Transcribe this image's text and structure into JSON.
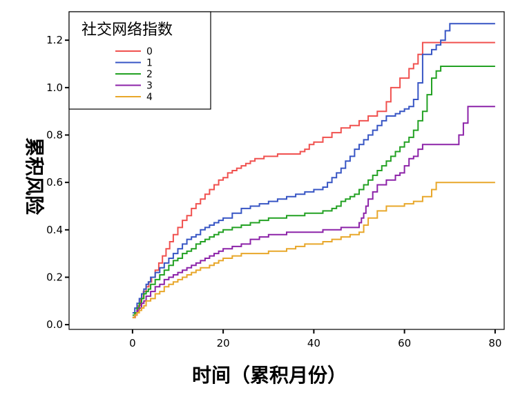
{
  "chart_data": {
    "type": "line",
    "step": true,
    "xlabel": "时间（累积月份）",
    "ylabel": "累积风险",
    "xlim": [
      -14,
      82
    ],
    "ylim": [
      -0.02,
      1.32
    ],
    "x_ticks": [
      0,
      20,
      40,
      60,
      80
    ],
    "y_ticks": [
      0.0,
      0.2,
      0.4,
      0.6,
      0.8,
      1.0,
      1.2
    ],
    "y_tick_labels": [
      "0.0",
      "0.2",
      "0.4",
      "0.6",
      "0.8",
      "1.0",
      "1.2"
    ],
    "legend": {
      "title": "社交网络指数",
      "placement": "top-left"
    },
    "series": [
      {
        "name": "0",
        "color": "#f0504e",
        "x": [
          0,
          0.6,
          1.2,
          1.8,
          2.4,
          3,
          3.6,
          4.2,
          5,
          5.8,
          6.6,
          7.4,
          8.2,
          9,
          10,
          11,
          12,
          13,
          14,
          15,
          16,
          17,
          18,
          19,
          20,
          21,
          22,
          23,
          24,
          25,
          26,
          27,
          28,
          29,
          30,
          32,
          34,
          36,
          37,
          38,
          39,
          40,
          42,
          44,
          46,
          48,
          50,
          52,
          54,
          56,
          57,
          59,
          61,
          62,
          63,
          64,
          80
        ],
        "y": [
          0.03,
          0.05,
          0.08,
          0.11,
          0.14,
          0.16,
          0.18,
          0.2,
          0.23,
          0.26,
          0.29,
          0.32,
          0.35,
          0.38,
          0.41,
          0.44,
          0.46,
          0.49,
          0.51,
          0.53,
          0.55,
          0.57,
          0.59,
          0.61,
          0.62,
          0.64,
          0.65,
          0.66,
          0.67,
          0.68,
          0.69,
          0.7,
          0.7,
          0.71,
          0.71,
          0.72,
          0.72,
          0.72,
          0.73,
          0.74,
          0.76,
          0.77,
          0.79,
          0.81,
          0.83,
          0.84,
          0.86,
          0.88,
          0.9,
          0.94,
          1.0,
          1.04,
          1.08,
          1.1,
          1.14,
          1.19,
          1.19
        ]
      },
      {
        "name": "1",
        "color": "#3755c4",
        "x": [
          0,
          0.5,
          1,
          1.5,
          2,
          2.5,
          3,
          3.5,
          4,
          5,
          6,
          7,
          8,
          9,
          10,
          11,
          12,
          13,
          14,
          15,
          16,
          17,
          18,
          19,
          20,
          22,
          24,
          26,
          28,
          30,
          32,
          34,
          36,
          38,
          40,
          42,
          43,
          44,
          45,
          46,
          47,
          48,
          49,
          50,
          51,
          52,
          53,
          54,
          55,
          56,
          57,
          58,
          59,
          60,
          61,
          62,
          63,
          64,
          66,
          67,
          68,
          69,
          70,
          80
        ],
        "y": [
          0.05,
          0.07,
          0.09,
          0.11,
          0.13,
          0.15,
          0.17,
          0.18,
          0.2,
          0.22,
          0.24,
          0.26,
          0.28,
          0.3,
          0.32,
          0.34,
          0.36,
          0.37,
          0.38,
          0.4,
          0.41,
          0.42,
          0.43,
          0.44,
          0.45,
          0.47,
          0.49,
          0.5,
          0.51,
          0.52,
          0.53,
          0.54,
          0.55,
          0.56,
          0.57,
          0.58,
          0.6,
          0.62,
          0.64,
          0.66,
          0.69,
          0.71,
          0.74,
          0.76,
          0.78,
          0.8,
          0.82,
          0.84,
          0.86,
          0.88,
          0.88,
          0.89,
          0.9,
          0.91,
          0.92,
          0.95,
          1.02,
          1.14,
          1.16,
          1.18,
          1.2,
          1.24,
          1.27,
          1.27
        ]
      },
      {
        "name": "2",
        "color": "#22a122",
        "x": [
          0,
          0.5,
          1,
          1.5,
          2,
          2.5,
          3,
          3.5,
          4,
          5,
          6,
          7,
          8,
          9,
          10,
          11,
          12,
          13,
          14,
          15,
          16,
          17,
          18,
          19,
          20,
          22,
          24,
          26,
          28,
          30,
          32,
          34,
          36,
          38,
          40,
          42,
          44,
          45,
          46,
          47,
          48,
          49,
          50,
          51,
          52,
          53,
          54,
          55,
          56,
          57,
          58,
          59,
          60,
          61,
          62,
          63,
          64,
          65,
          66,
          67,
          68,
          80
        ],
        "y": [
          0.04,
          0.05,
          0.07,
          0.09,
          0.11,
          0.13,
          0.14,
          0.15,
          0.17,
          0.19,
          0.21,
          0.23,
          0.25,
          0.27,
          0.28,
          0.3,
          0.31,
          0.32,
          0.34,
          0.35,
          0.36,
          0.37,
          0.38,
          0.39,
          0.4,
          0.41,
          0.42,
          0.43,
          0.44,
          0.45,
          0.45,
          0.46,
          0.46,
          0.47,
          0.47,
          0.48,
          0.49,
          0.5,
          0.52,
          0.53,
          0.54,
          0.55,
          0.57,
          0.59,
          0.61,
          0.63,
          0.65,
          0.67,
          0.69,
          0.71,
          0.73,
          0.75,
          0.77,
          0.79,
          0.82,
          0.86,
          0.9,
          0.97,
          1.04,
          1.07,
          1.09,
          1.09
        ]
      },
      {
        "name": "3",
        "color": "#8c22a8",
        "x": [
          0,
          0.5,
          1,
          1.5,
          2,
          2.5,
          3,
          4,
          5,
          6,
          7,
          8,
          9,
          10,
          11,
          12,
          13,
          14,
          15,
          16,
          17,
          18,
          19,
          20,
          22,
          24,
          26,
          28,
          30,
          32,
          34,
          36,
          38,
          40,
          42,
          44,
          46,
          48,
          50,
          50.5,
          51,
          51.5,
          52,
          53,
          54,
          56,
          58,
          59,
          60,
          61,
          62,
          63,
          64,
          66,
          68,
          70,
          72,
          73,
          74,
          80
        ],
        "y": [
          0.03,
          0.04,
          0.06,
          0.07,
          0.09,
          0.1,
          0.12,
          0.14,
          0.16,
          0.17,
          0.19,
          0.2,
          0.21,
          0.22,
          0.23,
          0.24,
          0.25,
          0.26,
          0.27,
          0.28,
          0.29,
          0.3,
          0.31,
          0.32,
          0.33,
          0.34,
          0.36,
          0.37,
          0.38,
          0.38,
          0.39,
          0.39,
          0.39,
          0.39,
          0.4,
          0.4,
          0.41,
          0.41,
          0.43,
          0.45,
          0.47,
          0.5,
          0.53,
          0.56,
          0.59,
          0.61,
          0.63,
          0.64,
          0.67,
          0.7,
          0.71,
          0.74,
          0.76,
          0.76,
          0.76,
          0.76,
          0.8,
          0.85,
          0.92,
          0.92
        ]
      },
      {
        "name": "4",
        "color": "#e8a72a",
        "x": [
          0,
          0.5,
          1,
          1.5,
          2,
          2.5,
          3,
          4,
          5,
          6,
          7,
          8,
          9,
          10,
          11,
          12,
          13,
          14,
          15,
          16,
          17,
          18,
          19,
          20,
          22,
          24,
          26,
          28,
          30,
          32,
          34,
          36,
          38,
          40,
          42,
          44,
          46,
          48,
          50,
          51,
          52,
          54,
          56,
          58,
          60,
          62,
          64,
          66,
          67,
          68,
          80
        ],
        "y": [
          0.03,
          0.04,
          0.05,
          0.06,
          0.07,
          0.08,
          0.1,
          0.11,
          0.13,
          0.14,
          0.16,
          0.17,
          0.18,
          0.19,
          0.2,
          0.21,
          0.22,
          0.23,
          0.24,
          0.24,
          0.25,
          0.26,
          0.27,
          0.28,
          0.29,
          0.3,
          0.3,
          0.3,
          0.31,
          0.31,
          0.32,
          0.33,
          0.34,
          0.34,
          0.35,
          0.36,
          0.37,
          0.38,
          0.39,
          0.42,
          0.45,
          0.48,
          0.5,
          0.5,
          0.51,
          0.52,
          0.54,
          0.57,
          0.6,
          0.6,
          0.6
        ]
      }
    ]
  }
}
